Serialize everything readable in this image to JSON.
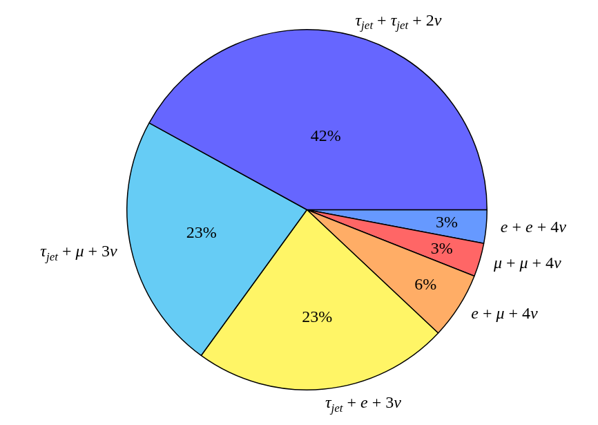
{
  "chart_data": {
    "type": "pie",
    "categories": [
      "e + e + 4ν",
      "μ + μ + 4ν",
      "e + μ + 4ν",
      "τjet + e + 3ν",
      "τjet + μ + 3ν",
      "τjet + τjet + 2ν"
    ],
    "values": [
      3,
      3,
      6,
      23,
      23,
      42
    ],
    "value_labels": [
      "3%",
      "3%",
      "6%",
      "23%",
      "23%",
      "42%"
    ],
    "colors": [
      "#6699ff",
      "#ff6666",
      "#ffad66",
      "#fff566",
      "#66ccf5",
      "#6666ff"
    ],
    "data_labels": true
  }
}
